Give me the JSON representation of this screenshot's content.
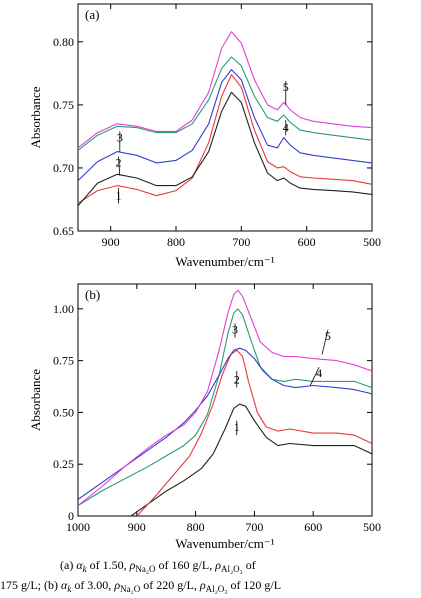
{
  "chart_data": [
    {
      "type": "line",
      "panel_label": "(a)",
      "xlabel": "Wavenumber/cm⁻¹",
      "ylabel": "Absorbance",
      "xlim": [
        950,
        500
      ],
      "ylim": [
        0.65,
        0.83
      ],
      "x_ticks": [
        900,
        800,
        700,
        600,
        500
      ],
      "y_ticks": [
        0.65,
        0.7,
        0.75,
        0.8
      ],
      "y_tick_labels": [
        "0.65",
        "0.70",
        "0.75",
        "0.80"
      ],
      "grid": false,
      "colors": [
        "#e8383d",
        "#222222",
        "#2f3fd0",
        "#2a9a7a",
        "#e040d8"
      ],
      "series": [
        {
          "name": "1",
          "x": [
            950,
            920,
            890,
            860,
            830,
            800,
            775,
            750,
            730,
            715,
            700,
            680,
            660,
            645,
            635,
            625,
            610,
            590,
            560,
            530,
            500
          ],
          "values": [
            0.672,
            0.682,
            0.686,
            0.683,
            0.678,
            0.682,
            0.692,
            0.72,
            0.757,
            0.774,
            0.764,
            0.73,
            0.705,
            0.7,
            0.701,
            0.697,
            0.693,
            0.692,
            0.691,
            0.69,
            0.687
          ]
        },
        {
          "name": "2",
          "x": [
            950,
            920,
            890,
            860,
            830,
            800,
            775,
            750,
            730,
            715,
            700,
            680,
            660,
            645,
            635,
            625,
            610,
            590,
            560,
            530,
            500
          ],
          "values": [
            0.67,
            0.688,
            0.695,
            0.692,
            0.686,
            0.686,
            0.693,
            0.713,
            0.745,
            0.76,
            0.752,
            0.72,
            0.696,
            0.69,
            0.692,
            0.688,
            0.684,
            0.683,
            0.682,
            0.681,
            0.679
          ]
        },
        {
          "name": "3",
          "x": [
            950,
            920,
            890,
            860,
            830,
            800,
            775,
            750,
            730,
            715,
            700,
            680,
            660,
            645,
            635,
            625,
            610,
            590,
            560,
            530,
            500
          ],
          "values": [
            0.69,
            0.705,
            0.713,
            0.71,
            0.704,
            0.706,
            0.714,
            0.735,
            0.768,
            0.778,
            0.77,
            0.74,
            0.718,
            0.716,
            0.724,
            0.718,
            0.712,
            0.71,
            0.708,
            0.706,
            0.704
          ]
        },
        {
          "name": "4",
          "x": [
            950,
            920,
            890,
            860,
            830,
            800,
            775,
            750,
            730,
            715,
            700,
            680,
            660,
            645,
            635,
            625,
            610,
            590,
            560,
            530,
            500
          ],
          "values": [
            0.714,
            0.726,
            0.733,
            0.732,
            0.728,
            0.728,
            0.735,
            0.754,
            0.779,
            0.788,
            0.781,
            0.757,
            0.74,
            0.737,
            0.742,
            0.736,
            0.73,
            0.728,
            0.726,
            0.724,
            0.722
          ]
        },
        {
          "name": "5",
          "x": [
            950,
            920,
            890,
            860,
            830,
            800,
            775,
            750,
            730,
            715,
            700,
            680,
            660,
            645,
            635,
            625,
            610,
            590,
            560,
            530,
            500
          ],
          "values": [
            0.716,
            0.728,
            0.735,
            0.733,
            0.729,
            0.729,
            0.738,
            0.76,
            0.795,
            0.808,
            0.799,
            0.77,
            0.75,
            0.746,
            0.752,
            0.746,
            0.74,
            0.737,
            0.735,
            0.733,
            0.732
          ]
        }
      ],
      "curve_labels": [
        {
          "text": "1",
          "x": 888,
          "y": 0.675,
          "lx": 888,
          "ly": 0.684
        },
        {
          "text": "2",
          "x": 888,
          "y": 0.701,
          "lx": 886,
          "ly": 0.694
        },
        {
          "text": "3",
          "x": 886,
          "y": 0.721,
          "lx": 886,
          "ly": 0.713
        },
        {
          "text": "4",
          "x": 632,
          "y": 0.729,
          "lx": 632,
          "ly": 0.738
        },
        {
          "text": "5",
          "x": 632,
          "y": 0.761,
          "lx": 632,
          "ly": 0.75
        }
      ]
    },
    {
      "type": "line",
      "panel_label": "(b)",
      "xlabel": "Wavenumber/cm⁻¹",
      "ylabel": "Absorbance",
      "xlim": [
        1000,
        500
      ],
      "ylim": [
        0,
        1.12
      ],
      "x_ticks": [
        1000,
        900,
        800,
        700,
        600,
        500
      ],
      "y_ticks": [
        0,
        0.25,
        0.5,
        0.75,
        1.0
      ],
      "y_tick_labels": [
        "0",
        "0.25",
        "0.50",
        "0.75",
        "1.00"
      ],
      "grid": false,
      "colors": [
        "#222222",
        "#e8383d",
        "#2a9a7a",
        "#2f3fd0",
        "#e040d8"
      ],
      "series": [
        {
          "name": "1",
          "x": [
            910,
            880,
            850,
            820,
            790,
            770,
            750,
            735,
            725,
            715,
            700,
            680,
            660,
            640,
            600,
            560,
            530,
            500
          ],
          "values": [
            0.0,
            0.06,
            0.12,
            0.17,
            0.23,
            0.3,
            0.42,
            0.52,
            0.54,
            0.53,
            0.46,
            0.38,
            0.34,
            0.35,
            0.34,
            0.34,
            0.34,
            0.3
          ]
        },
        {
          "name": "2",
          "x": [
            900,
            870,
            840,
            810,
            790,
            770,
            755,
            740,
            730,
            720,
            710,
            695,
            680,
            660,
            640,
            600,
            560,
            530,
            500
          ],
          "values": [
            0.0,
            0.09,
            0.19,
            0.29,
            0.4,
            0.54,
            0.68,
            0.78,
            0.8,
            0.77,
            0.65,
            0.5,
            0.43,
            0.41,
            0.42,
            0.4,
            0.4,
            0.39,
            0.35
          ]
        },
        {
          "name": "3",
          "x": [
            1000,
            960,
            920,
            880,
            850,
            820,
            800,
            780,
            760,
            745,
            735,
            728,
            720,
            705,
            690,
            670,
            650,
            630,
            600,
            560,
            530,
            500
          ],
          "values": [
            0.05,
            0.12,
            0.18,
            0.24,
            0.29,
            0.34,
            0.39,
            0.49,
            0.68,
            0.88,
            0.98,
            1.0,
            0.97,
            0.84,
            0.72,
            0.66,
            0.65,
            0.66,
            0.65,
            0.65,
            0.65,
            0.62
          ]
        },
        {
          "name": "4",
          "x": [
            1000,
            960,
            920,
            880,
            850,
            820,
            800,
            780,
            760,
            745,
            735,
            725,
            715,
            700,
            685,
            670,
            650,
            630,
            600,
            560,
            530,
            500
          ],
          "values": [
            0.08,
            0.16,
            0.24,
            0.32,
            0.38,
            0.45,
            0.51,
            0.58,
            0.68,
            0.76,
            0.8,
            0.81,
            0.8,
            0.76,
            0.7,
            0.66,
            0.63,
            0.62,
            0.63,
            0.62,
            0.61,
            0.59
          ]
        },
        {
          "name": "5",
          "x": [
            1000,
            960,
            920,
            880,
            850,
            820,
            800,
            780,
            760,
            745,
            735,
            728,
            720,
            705,
            690,
            670,
            650,
            630,
            600,
            560,
            530,
            500
          ],
          "values": [
            0.05,
            0.14,
            0.24,
            0.33,
            0.39,
            0.44,
            0.5,
            0.6,
            0.8,
            0.98,
            1.07,
            1.09,
            1.06,
            0.95,
            0.84,
            0.79,
            0.77,
            0.77,
            0.76,
            0.75,
            0.73,
            0.7
          ]
        }
      ],
      "curve_labels": [
        {
          "text": "1",
          "x": 730,
          "y": 0.41,
          "lx": 730,
          "ly": 0.46
        },
        {
          "text": "2",
          "x": 730,
          "y": 0.64,
          "lx": 730,
          "ly": 0.7
        },
        {
          "text": "3",
          "x": 733,
          "y": 0.88,
          "lx": 733,
          "ly": 0.93
        },
        {
          "text": "4",
          "x": 590,
          "y": 0.67,
          "lx": 605,
          "ly": 0.63
        },
        {
          "text": "5",
          "x": 575,
          "y": 0.85,
          "lx": 585,
          "ly": 0.78
        }
      ]
    }
  ],
  "caption": {
    "a_prefix": "(a) ",
    "alpha": "α",
    "k": "k",
    "a_ak_value": " of 1.50,  ",
    "rho": "ρ",
    "na2o": "Na₂O",
    "a_na_value": "  of  160  g/L,  ",
    "al2o3": "Al₂O₃",
    "a_of": " of",
    "line2_value": "175  g/L;",
    "b_prefix": "  (b) ",
    "b_ak_value": " of  3.00,  ",
    "b_na_value": "  of  220  g/L,  ",
    "b_al_value": " of 120 g/L"
  }
}
